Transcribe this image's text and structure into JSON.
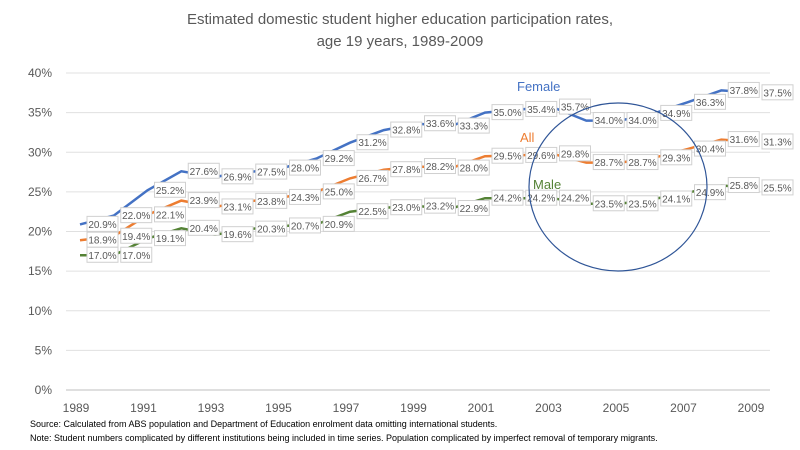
{
  "chart_data": {
    "type": "line",
    "title": "Estimated domestic student higher education participation rates,",
    "subtitle": "age 19 years, 1989-2009",
    "x": [
      1989,
      1990,
      1991,
      1992,
      1993,
      1994,
      1995,
      1996,
      1997,
      1998,
      1999,
      2000,
      2001,
      2002,
      2003,
      2004,
      2005,
      2006,
      2007,
      2008,
      2009
    ],
    "x_tick_labels": [
      "1989",
      "1991",
      "1993",
      "1995",
      "1997",
      "1999",
      "2001",
      "2003",
      "2005",
      "2007",
      "2009"
    ],
    "y_tick_labels": [
      "0%",
      "5%",
      "10%",
      "15%",
      "20%",
      "25%",
      "30%",
      "35%",
      "40%"
    ],
    "ylim": [
      0,
      40
    ],
    "grid": true,
    "series": [
      {
        "name": "Female",
        "color": "#4472C4",
        "values": [
          20.9,
          22.0,
          25.2,
          27.6,
          26.9,
          27.5,
          28.0,
          29.2,
          31.2,
          32.8,
          33.6,
          33.3,
          35.0,
          35.4,
          35.7,
          34.0,
          34.0,
          34.9,
          36.3,
          37.8,
          37.5
        ]
      },
      {
        "name": "All",
        "color": "#ED7D31",
        "values": [
          18.9,
          19.4,
          22.1,
          23.9,
          23.1,
          23.8,
          24.3,
          25.0,
          26.7,
          27.8,
          28.2,
          28.0,
          29.5,
          29.6,
          29.8,
          28.7,
          28.7,
          29.3,
          30.4,
          31.6,
          31.3
        ]
      },
      {
        "name": "Male",
        "color": "#548235",
        "values": [
          17.0,
          17.0,
          19.1,
          20.4,
          19.6,
          20.3,
          20.7,
          20.9,
          22.5,
          23.0,
          23.2,
          22.9,
          24.2,
          24.2,
          24.2,
          23.5,
          23.5,
          24.1,
          24.9,
          25.8,
          25.5
        ]
      }
    ],
    "annotation": "circle highlighting 2003-2007 dip",
    "annotation_color": "#2F5597"
  },
  "notes": {
    "source": "Source: Calculated from ABS population and Department of Education enrolment data omitting international students.",
    "note": "Note: Student numbers complicated by different institutions being included in time series.   Population complicated by imperfect removal of temporary migrants."
  }
}
